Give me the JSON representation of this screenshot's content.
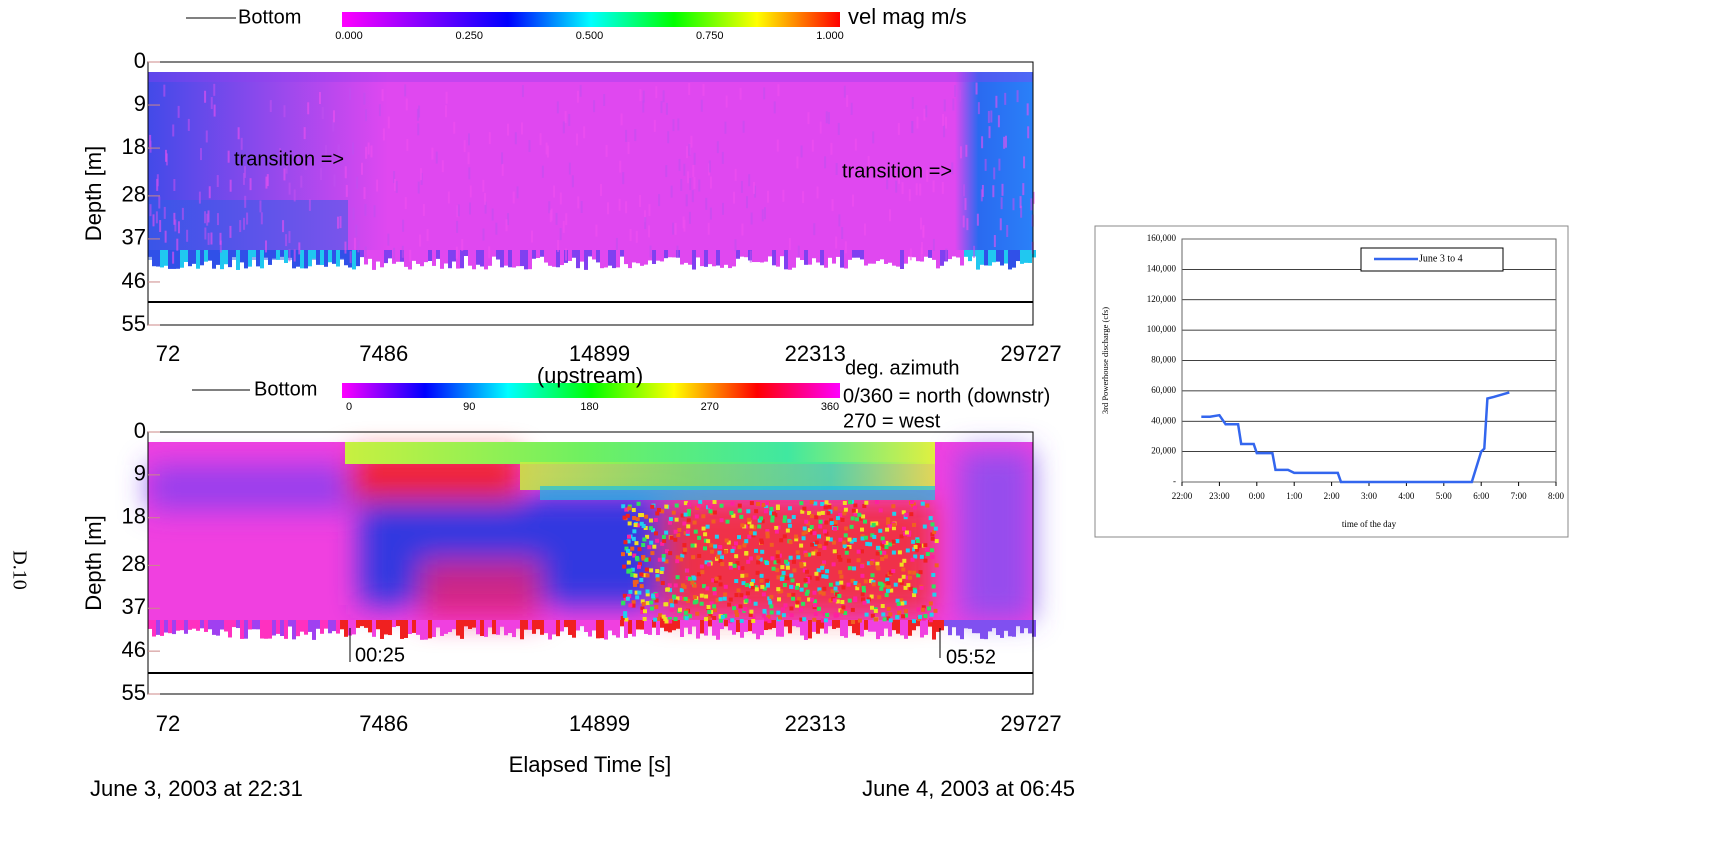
{
  "page_label": "D.10",
  "chart_data": [
    {
      "type": "heatmap",
      "legend": "Bottom",
      "colorbar_label": "vel mag m/s",
      "colormap": [
        "#ff00ff",
        "#8000ff",
        "#0000ff",
        "#00ffff",
        "#00ff00",
        "#ffff00",
        "#ff0000"
      ],
      "colorbar_ticks": [
        {
          "value": 0,
          "label": "0.000"
        },
        {
          "value": 0.25,
          "label": "0.250"
        },
        {
          "value": 0.5,
          "label": "0.500"
        },
        {
          "value": 0.75,
          "label": "0.750"
        },
        {
          "value": 1,
          "label": "1.000"
        }
      ],
      "ylabel": "Depth [m]",
      "ylim": [
        0,
        55
      ],
      "yticks": [
        0,
        9,
        18,
        28,
        37,
        46,
        55
      ],
      "xlim": [
        72,
        29727
      ],
      "xticks": [
        72,
        7486,
        14899,
        22313,
        29727
      ],
      "annotations": [
        "transition =>",
        "transition =>"
      ]
    },
    {
      "type": "heatmap",
      "legend": "Bottom",
      "colorbar_label": "deg. azimuth",
      "colormap": [
        "#ff00ff",
        "#0000ff",
        "#00ffff",
        "#00ff00",
        "#ffff00",
        "#ff0000",
        "#ff00ff"
      ],
      "colorbar_ticks": [
        0,
        90,
        180,
        270,
        360
      ],
      "notes": [
        "(upstream)",
        "0/360 = north (downstr)",
        "270 = west"
      ],
      "ylabel": "Depth [m]",
      "ylim": [
        0,
        55
      ],
      "yticks": [
        0,
        9,
        18,
        28,
        37,
        46,
        55
      ],
      "xlim": [
        72,
        29727
      ],
      "xticks": [
        72,
        7486,
        14899,
        22313,
        29727
      ],
      "markers": [
        "00:25",
        "05:52"
      ],
      "xlabel": "Elapsed Time [s]",
      "start_label": "June 3, 2003 at 22:31",
      "end_label": "June 4, 2003 at 06:45"
    },
    {
      "type": "line",
      "ylabel": "3rd Powerhouse discharge (cfs)",
      "xlabel": "time of the day",
      "x": [
        "22:31",
        "22:45",
        "23:00",
        "23:10",
        "23:30",
        "23:35",
        "23:55",
        "0:00",
        "0:25",
        "0:30",
        "0:50",
        "1:00",
        "1:45",
        "2:10",
        "2:15",
        "5:45",
        "6:00",
        "6:05",
        "6:10",
        "6:20",
        "6:45"
      ],
      "series": [
        {
          "name": "June 3 to 4",
          "color": "#3366ee",
          "values": [
            43000,
            43000,
            44000,
            38000,
            38000,
            25000,
            25000,
            19000,
            19000,
            8000,
            8000,
            6000,
            6000,
            6000,
            0,
            0,
            20000,
            22000,
            55000,
            56000,
            59000
          ]
        }
      ],
      "xlim": [
        "22:00",
        "8:00"
      ],
      "xticks": [
        "22:00",
        "23:00",
        "0:00",
        "1:00",
        "2:00",
        "3:00",
        "4:00",
        "5:00",
        "6:00",
        "7:00",
        "8:00"
      ],
      "ylim": [
        0,
        160000
      ],
      "yticks": [
        {
          "value": 0,
          "label": "-"
        },
        {
          "value": 20000,
          "label": "20,000"
        },
        {
          "value": 40000,
          "label": "40,000"
        },
        {
          "value": 60000,
          "label": "60,000"
        },
        {
          "value": 80000,
          "label": "80,000"
        },
        {
          "value": 100000,
          "label": "100,000"
        },
        {
          "value": 120000,
          "label": "120,000"
        },
        {
          "value": 140000,
          "label": "140,000"
        },
        {
          "value": 160000,
          "label": "160,000"
        }
      ],
      "grid": true
    }
  ]
}
